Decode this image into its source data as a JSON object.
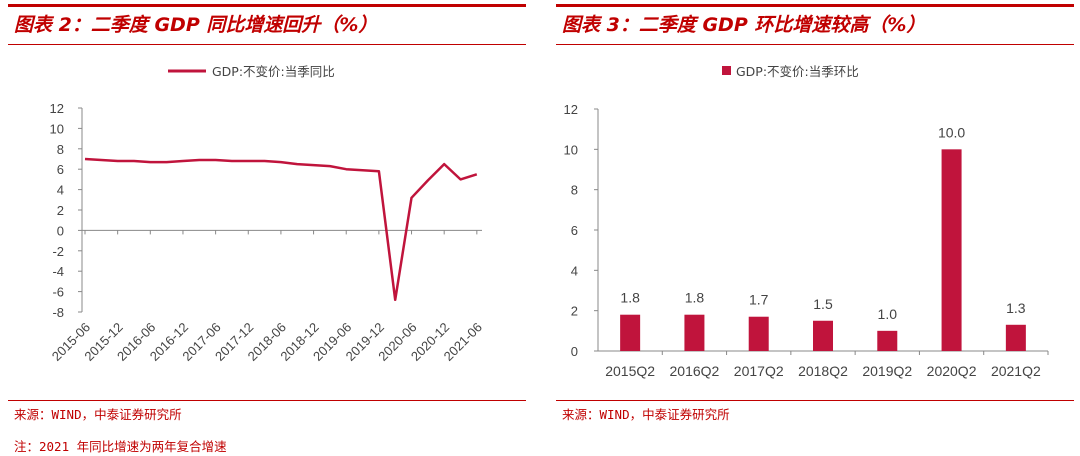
{
  "left": {
    "title": "图表 2：二季度 GDP 同比增速回升（%）",
    "source": "来源：WIND，中泰证券研究所",
    "note": "注：2021 年同比增速为两年复合增速"
  },
  "right": {
    "title": "图表 3：二季度 GDP 环比增速较高（%）",
    "source": "来源：WIND，中泰证券研究所"
  },
  "colors": {
    "accent": "#c00000",
    "series": "#c0143c"
  },
  "chart_data": [
    {
      "type": "line",
      "legend": "GDP:不变价:当季同比",
      "x_ticks": [
        "2015-06",
        "2015-12",
        "2016-06",
        "2016-12",
        "2017-06",
        "2017-12",
        "2018-06",
        "2018-12",
        "2019-06",
        "2019-12",
        "2020-06",
        "2020-12",
        "2021-06"
      ],
      "x": [
        "2015-06",
        "2015-09",
        "2015-12",
        "2016-03",
        "2016-06",
        "2016-09",
        "2016-12",
        "2017-03",
        "2017-06",
        "2017-09",
        "2017-12",
        "2018-03",
        "2018-06",
        "2018-09",
        "2018-12",
        "2019-03",
        "2019-06",
        "2019-09",
        "2019-12",
        "2020-03",
        "2020-06",
        "2020-09",
        "2020-12",
        "2021-03",
        "2021-06"
      ],
      "values": [
        7.0,
        6.9,
        6.8,
        6.8,
        6.7,
        6.7,
        6.8,
        6.9,
        6.9,
        6.8,
        6.8,
        6.8,
        6.7,
        6.5,
        6.4,
        6.3,
        6.0,
        5.9,
        5.8,
        -6.8,
        3.2,
        4.9,
        6.5,
        5.0,
        5.5
      ],
      "y_ticks": [
        "12",
        "10",
        "8",
        "6",
        "4",
        "2",
        "0",
        "-2",
        "-4",
        "-6",
        "-8"
      ],
      "ylim": [
        -8,
        12
      ]
    },
    {
      "type": "bar",
      "legend": "GDP:不变价:当季环比",
      "categories": [
        "2015Q2",
        "2016Q2",
        "2017Q2",
        "2018Q2",
        "2019Q2",
        "2020Q2",
        "2021Q2"
      ],
      "values": [
        1.8,
        1.8,
        1.7,
        1.5,
        1.0,
        10.0,
        1.3
      ],
      "value_labels": [
        "1.8",
        "1.8",
        "1.7",
        "1.5",
        "1.0",
        "10.0",
        "1.3"
      ],
      "y_ticks": [
        "12",
        "10",
        "8",
        "6",
        "4",
        "2",
        "0"
      ],
      "ylim": [
        0,
        12
      ]
    }
  ]
}
